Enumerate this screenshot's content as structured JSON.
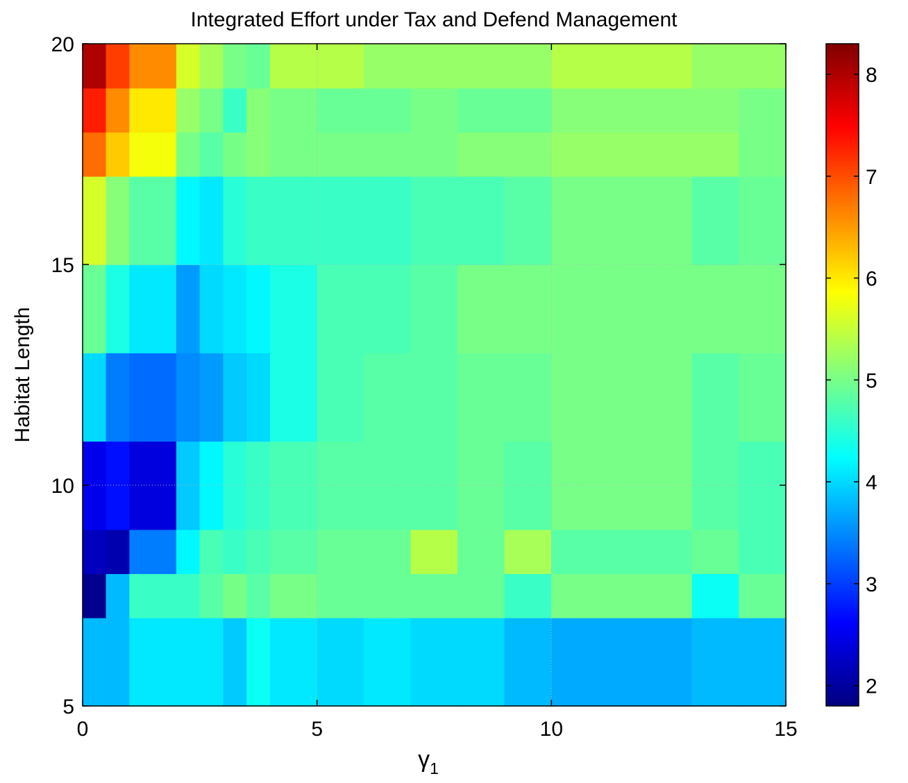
{
  "chart_data": {
    "type": "heatmap",
    "title": "Integrated Effort under Tax and Defend Management",
    "xlabel": "γ",
    "xlabel_subscript": "1",
    "ylabel": "Habitat Length",
    "xlim": [
      0,
      15
    ],
    "ylim": [
      5,
      20
    ],
    "x_ticks": [
      "0",
      "5",
      "10",
      "15"
    ],
    "y_ticks": [
      "5",
      "10",
      "15",
      "20"
    ],
    "x_bin_edges": [
      0,
      0.5,
      1,
      2,
      2.5,
      3,
      3.5,
      4,
      5,
      6,
      7,
      8,
      9,
      10,
      13,
      14,
      15
    ],
    "y_bin_edges": [
      5,
      7,
      8,
      9,
      11,
      13,
      15,
      17,
      18,
      19,
      20
    ],
    "values": [
      [
        3.8,
        3.8,
        4.1,
        4.1,
        4.1,
        3.9,
        4.3,
        4.1,
        4.0,
        4.1,
        4.0,
        4.0,
        3.8,
        3.7,
        3.8,
        3.8
      ],
      [
        1.9,
        3.8,
        4.6,
        4.6,
        4.8,
        5.0,
        4.8,
        5.0,
        4.9,
        4.9,
        4.9,
        4.9,
        4.6,
        5.0,
        4.3,
        4.9
      ],
      [
        2.2,
        2.1,
        3.4,
        4.2,
        4.7,
        4.6,
        4.7,
        4.8,
        4.9,
        4.9,
        5.4,
        4.9,
        5.3,
        4.8,
        4.9,
        4.7
      ],
      [
        2.5,
        2.7,
        2.4,
        3.9,
        4.2,
        4.5,
        4.6,
        4.7,
        4.8,
        4.8,
        4.8,
        4.9,
        4.8,
        5.0,
        4.8,
        4.7
      ],
      [
        4.0,
        3.4,
        3.3,
        3.5,
        3.6,
        3.9,
        4.0,
        4.4,
        4.7,
        4.8,
        4.8,
        4.9,
        4.9,
        5.0,
        4.8,
        4.9
      ],
      [
        4.9,
        4.4,
        4.1,
        3.6,
        4.0,
        4.1,
        4.2,
        4.4,
        4.7,
        4.7,
        4.8,
        5.0,
        5.0,
        5.0,
        5.0,
        5.0
      ],
      [
        5.6,
        5.1,
        4.8,
        4.2,
        4.1,
        4.5,
        4.6,
        4.6,
        4.6,
        4.6,
        4.7,
        4.7,
        4.8,
        5.0,
        4.8,
        4.9
      ],
      [
        6.8,
        6.2,
        5.8,
        5.0,
        4.8,
        5.0,
        5.1,
        5.0,
        5.0,
        5.0,
        5.0,
        5.1,
        5.1,
        5.2,
        5.2,
        5.0
      ],
      [
        7.3,
        6.6,
        6.0,
        5.2,
        5.0,
        4.6,
        5.1,
        5.0,
        4.9,
        4.9,
        5.0,
        4.9,
        4.9,
        5.1,
        5.1,
        5.0
      ],
      [
        8.0,
        7.1,
        6.6,
        5.6,
        5.3,
        5.0,
        4.9,
        5.4,
        5.4,
        5.2,
        5.2,
        5.2,
        5.2,
        5.4,
        5.2,
        5.2
      ]
    ],
    "colorbar": {
      "range": [
        1.8,
        8.3
      ],
      "ticks": [
        "2",
        "3",
        "4",
        "5",
        "6",
        "7",
        "8"
      ],
      "colormap": "jet"
    },
    "grid": true
  }
}
